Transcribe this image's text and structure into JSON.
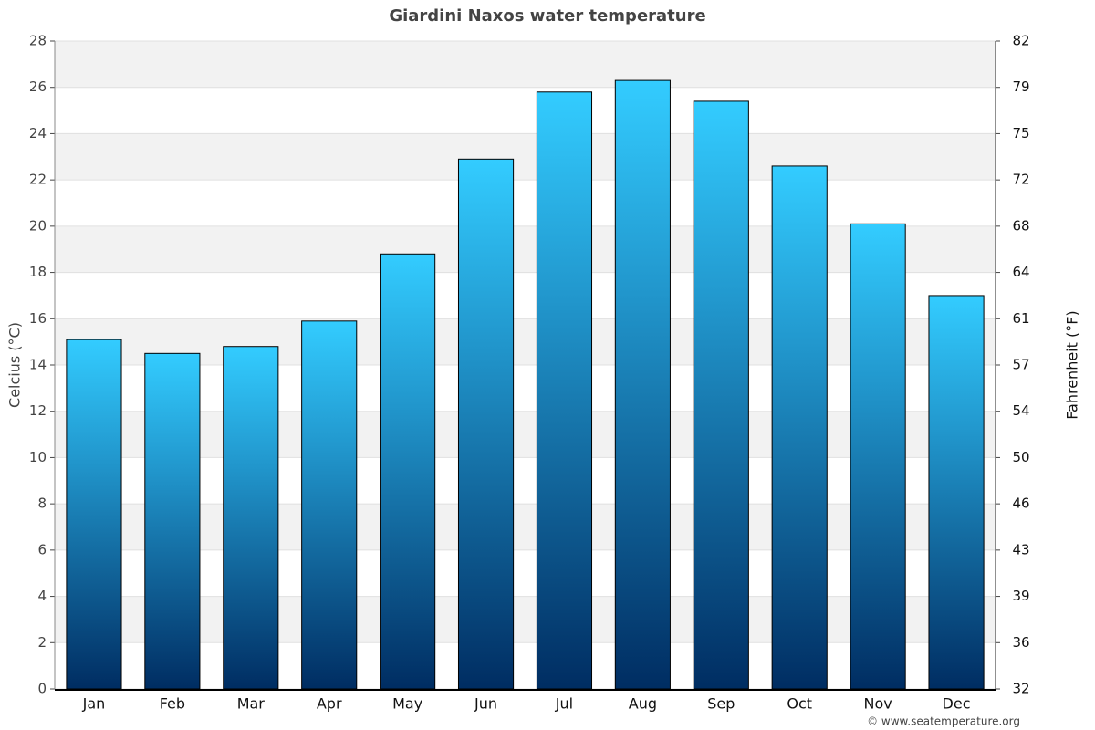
{
  "chart_data": {
    "type": "bar",
    "title": "Giardini Naxos water temperature",
    "categories": [
      "Jan",
      "Feb",
      "Mar",
      "Apr",
      "May",
      "Jun",
      "Jul",
      "Aug",
      "Sep",
      "Oct",
      "Nov",
      "Dec"
    ],
    "values": [
      15.1,
      14.5,
      14.8,
      15.9,
      18.8,
      22.9,
      25.8,
      26.3,
      25.4,
      22.6,
      20.1,
      17.0
    ],
    "color": "#0a4f8a",
    "ylabel": "Celcius (°C)",
    "y2label": "Fahrenheit (°F)",
    "ylim": [
      0,
      28
    ],
    "yticks": [
      0,
      2,
      4,
      6,
      8,
      10,
      12,
      14,
      16,
      18,
      20,
      22,
      24,
      26,
      28
    ],
    "y2lim": [
      32,
      82.4
    ],
    "y2ticks": [
      32,
      {
        "value": 35.6,
        "label": "36"
      },
      {
        "value": 39.2,
        "label": "39"
      },
      {
        "value": 42.8,
        "label": "43"
      },
      {
        "value": 46.4,
        "label": "46"
      },
      50,
      {
        "value": 53.6,
        "label": "54"
      },
      {
        "value": 57.2,
        "label": "57"
      },
      {
        "value": 60.8,
        "label": "61"
      },
      {
        "value": 64.4,
        "label": "64"
      },
      68,
      {
        "value": 71.6,
        "label": "72"
      },
      {
        "value": 75.2,
        "label": "75"
      },
      {
        "value": 78.8,
        "label": "79"
      },
      {
        "value": 82.4,
        "label": "82"
      }
    ],
    "grid": true,
    "credit": "© www.seatemperature.org"
  }
}
